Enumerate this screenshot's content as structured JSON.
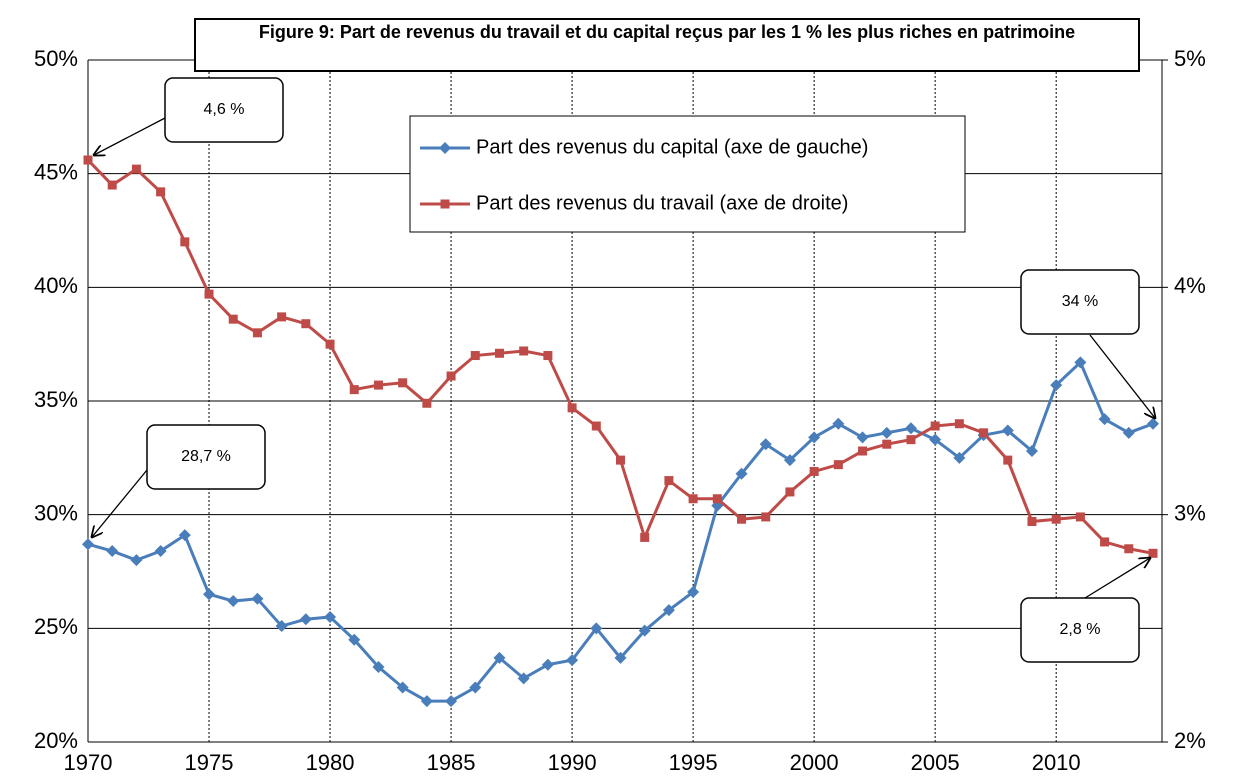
{
  "chart_data": {
    "type": "line",
    "title": "Figure 9: Part de revenus du travail et du capital reçus par les 1 % les plus riches en patrimoine",
    "x": [
      1970,
      1971,
      1972,
      1973,
      1974,
      1975,
      1976,
      1977,
      1978,
      1979,
      1980,
      1981,
      1982,
      1983,
      1984,
      1985,
      1986,
      1987,
      1988,
      1989,
      1990,
      1991,
      1992,
      1993,
      1994,
      1995,
      1996,
      1997,
      1998,
      1999,
      2000,
      2001,
      2002,
      2003,
      2004,
      2005,
      2006,
      2007,
      2008,
      2009,
      2010,
      2011,
      2012,
      2013,
      2014
    ],
    "xlim": [
      1970,
      2014
    ],
    "xticks": [
      1970,
      1975,
      1980,
      1985,
      1990,
      1995,
      2000,
      2005,
      2010
    ],
    "ylim": [
      20,
      50
    ],
    "yticks": [
      {
        "value": 20,
        "label": "20%"
      },
      {
        "value": 25,
        "label": "25%"
      },
      {
        "value": 30,
        "label": "30%"
      },
      {
        "value": 35,
        "label": "35%"
      },
      {
        "value": 40,
        "label": "40%"
      },
      {
        "value": 45,
        "label": "45%"
      },
      {
        "value": 50,
        "label": "50%"
      }
    ],
    "y2lim": [
      2,
      5
    ],
    "y2ticks": [
      {
        "value": 2,
        "label": "2%"
      },
      {
        "value": 3,
        "label": "3%"
      },
      {
        "value": 4,
        "label": "4%"
      },
      {
        "value": 5,
        "label": "5%"
      }
    ],
    "grid": true,
    "series": [
      {
        "name": "Part des revenus du capital (axe de gauche)",
        "color": "#4a7ebb",
        "marker": "diamond",
        "values": [
          28.7,
          28.4,
          28.0,
          28.4,
          29.1,
          26.5,
          26.2,
          26.3,
          25.1,
          25.4,
          25.5,
          24.5,
          23.3,
          22.4,
          21.8,
          21.8,
          22.4,
          23.7,
          22.8,
          23.4,
          23.6,
          25.0,
          23.7,
          24.9,
          25.8,
          26.6,
          30.4,
          31.8,
          33.1,
          32.4,
          33.4,
          34.0,
          33.4,
          33.6,
          33.8,
          33.3,
          32.5,
          33.5,
          33.7,
          32.8,
          35.7,
          36.7,
          34.2,
          33.6,
          34.0
        ]
      },
      {
        "name": "Part des revenus du travail (axe de droite)",
        "color": "#be4b48",
        "marker": "square",
        "axis": "y2",
        "values": [
          4.56,
          4.45,
          4.52,
          4.42,
          4.2,
          3.97,
          3.86,
          3.8,
          3.87,
          3.84,
          3.75,
          3.55,
          3.57,
          3.58,
          3.49,
          3.61,
          3.7,
          3.71,
          3.72,
          3.7,
          3.47,
          3.39,
          3.24,
          2.9,
          3.15,
          3.07,
          3.07,
          2.98,
          2.99,
          3.1,
          3.19,
          3.22,
          3.28,
          3.31,
          3.33,
          3.39,
          3.4,
          3.36,
          3.24,
          2.97,
          2.98,
          2.99,
          2.88,
          2.85,
          2.83
        ]
      }
    ],
    "annotations": [
      "4,6 %",
      "28,7 %",
      "34 %",
      "2,8 %"
    ]
  }
}
